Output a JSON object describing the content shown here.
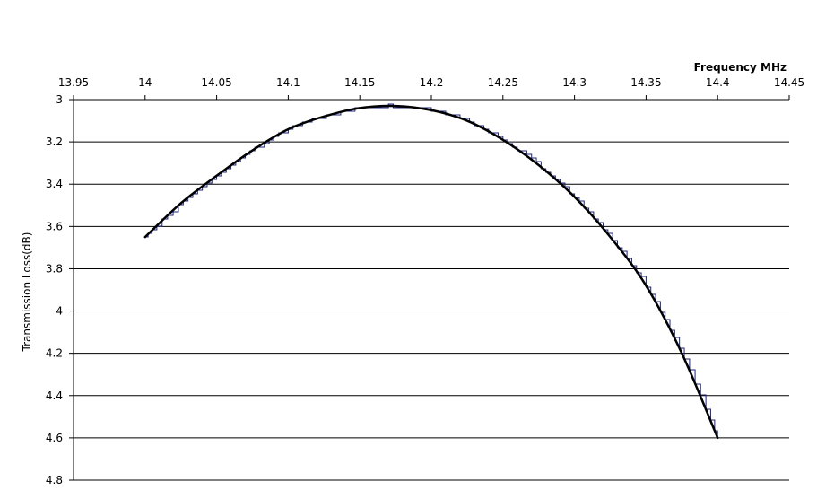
{
  "chart_data": {
    "type": "line",
    "title": "",
    "xlabel": "Frequency MHz",
    "ylabel": "Transmission Loss(dB)",
    "xlim": [
      13.95,
      14.45
    ],
    "ylim": [
      3,
      4.8
    ],
    "y_reversed": true,
    "x_axis_position": "top",
    "grid": "horizontal",
    "x_ticks": [
      "13.95",
      "14",
      "14.05",
      "14.1",
      "14.15",
      "14.2",
      "14.25",
      "14.3",
      "14.35",
      "14.4",
      "14.45"
    ],
    "y_ticks": [
      "3",
      "3.2",
      "3.4",
      "3.6",
      "3.8",
      "4",
      "4.2",
      "4.4",
      "4.6",
      "4.8"
    ],
    "series": [
      {
        "color": "#000000",
        "style": "smooth",
        "x": [
          14.0,
          14.025,
          14.05,
          14.075,
          14.1,
          14.125,
          14.15,
          14.175,
          14.2,
          14.225,
          14.25,
          14.275,
          14.3,
          14.325,
          14.35,
          14.375,
          14.4
        ],
        "y": [
          3.65,
          3.49,
          3.36,
          3.24,
          3.14,
          3.08,
          3.04,
          3.03,
          3.05,
          3.1,
          3.19,
          3.31,
          3.46,
          3.65,
          3.88,
          4.2,
          4.6
        ]
      },
      {
        "color": "#1a237e",
        "style": "step",
        "x": [
          14.0,
          14.025,
          14.05,
          14.075,
          14.1,
          14.125,
          14.15,
          14.175,
          14.2,
          14.225,
          14.25,
          14.275,
          14.3,
          14.325,
          14.35,
          14.375,
          14.4
        ],
        "y": [
          3.65,
          3.49,
          3.36,
          3.24,
          3.14,
          3.08,
          3.04,
          3.03,
          3.05,
          3.1,
          3.19,
          3.31,
          3.46,
          3.65,
          3.88,
          4.2,
          4.6
        ]
      }
    ]
  }
}
